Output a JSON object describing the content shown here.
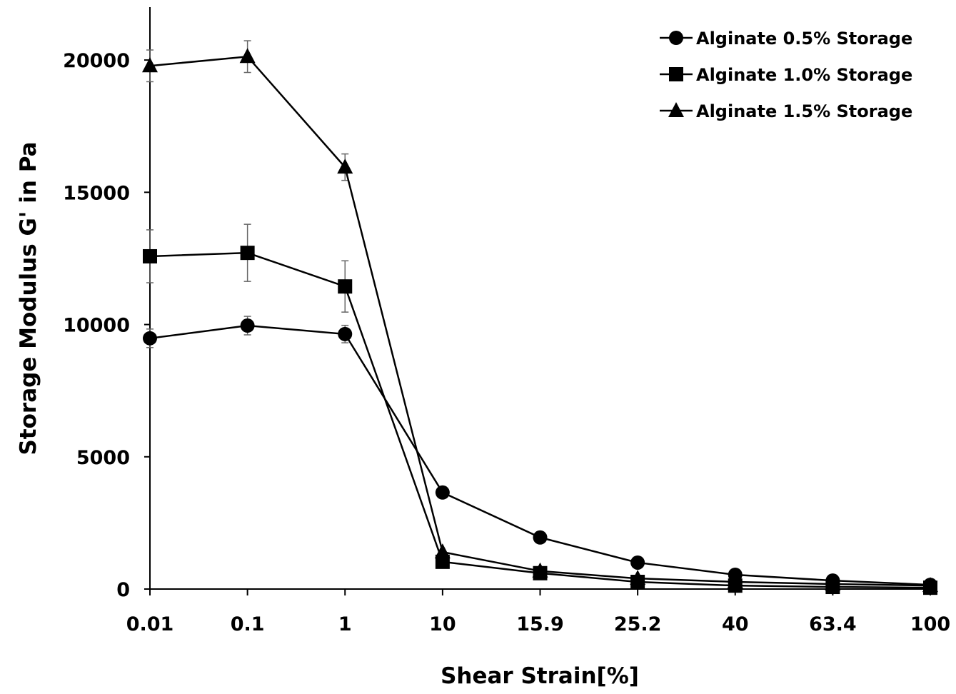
{
  "chart_data": {
    "type": "line",
    "title": "",
    "xlabel": "Shear Strain[%]",
    "ylabel": "Storage Modulus G' in Pa",
    "categories": [
      "0.01",
      "0.1",
      "1",
      "10",
      "15.9",
      "25.2",
      "40",
      "63.4",
      "100"
    ],
    "ylim": [
      0,
      22000
    ],
    "yticks": [
      0,
      5000,
      10000,
      15000,
      20000
    ],
    "ytick_labels": [
      "0",
      "5000",
      "10000",
      "15000",
      "20000"
    ],
    "grid": false,
    "legend_position": "top-right",
    "series": [
      {
        "name": "Alginate 0.5% Storage",
        "marker": "circle",
        "values": [
          9480,
          9960,
          9640,
          3650,
          1950,
          1000,
          540,
          320,
          160
        ],
        "errors": [
          350,
          350,
          330,
          0,
          0,
          0,
          0,
          0,
          0
        ]
      },
      {
        "name": "Alginate 1.0% Storage",
        "marker": "square",
        "values": [
          12580,
          12710,
          11440,
          1030,
          600,
          270,
          130,
          80,
          50
        ],
        "errors": [
          1000,
          1080,
          970,
          0,
          0,
          0,
          0,
          0,
          0
        ]
      },
      {
        "name": "Alginate 1.5% Storage",
        "marker": "triangle",
        "values": [
          19780,
          20130,
          15950,
          1400,
          680,
          400,
          270,
          190,
          130
        ],
        "errors": [
          600,
          600,
          500,
          0,
          0,
          0,
          0,
          0,
          0
        ]
      }
    ]
  }
}
